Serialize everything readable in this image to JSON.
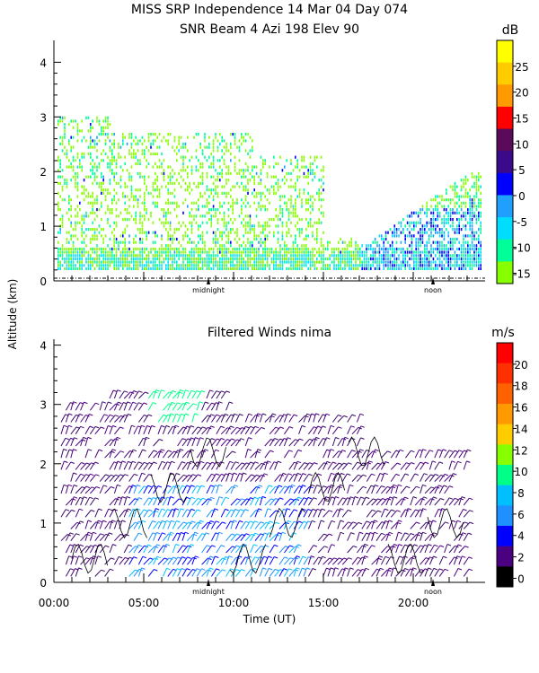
{
  "chart_data": [
    {
      "type": "heatmap",
      "title": "MISS SRP Independence  14 Mar 04 Day 074",
      "subtitle": "SNR Beam 4 Azi 198 Elev 90",
      "ylabel": "Altitude (km)",
      "ylim": [
        0,
        4.4
      ],
      "yticks": [
        "0",
        "1",
        "2",
        "3",
        "4"
      ],
      "xlim": [
        0,
        24
      ],
      "marker_labels": [
        "midnight",
        "noon"
      ],
      "colorbar": {
        "unit": "dB",
        "labels": [
          "25",
          "20",
          "15",
          "10",
          "5",
          "0",
          "-5",
          "-10",
          "-15"
        ],
        "colors": [
          "#ffff00",
          "#ffcc00",
          "#ff9900",
          "#ff0000",
          "#5a0a5a",
          "#3a0a8a",
          "#0000ff",
          "#1fa0ff",
          "#00ddff",
          "#00ff99",
          "#88ff00"
        ]
      },
      "regions": [
        {
          "name": "night-echo",
          "x": [
            0.2,
            17
          ],
          "y": [
            0.2,
            3.0
          ],
          "level": -12
        },
        {
          "name": "day-echo",
          "x": [
            17,
            24
          ],
          "y": [
            0.2,
            2.0
          ],
          "level": 0
        }
      ]
    },
    {
      "type": "scatter",
      "title": "Filtered Winds nima",
      "xlabel": "Time (UT)",
      "ylabel": "Altitude (km)",
      "ylim": [
        0,
        4.1
      ],
      "yticks": [
        "0",
        "1",
        "2",
        "3",
        "4"
      ],
      "xticks": [
        "00:00",
        "05:00",
        "10:00",
        "15:00",
        "20:00"
      ],
      "xlim": [
        0,
        24
      ],
      "marker_labels": [
        "midnight",
        "noon"
      ],
      "colorbar": {
        "unit": "m/s",
        "labels": [
          "20",
          "18",
          "16",
          "14",
          "12",
          "10",
          "8",
          "6",
          "4",
          "2",
          "0"
        ],
        "colors": [
          "#ff0000",
          "#ff3000",
          "#ff6000",
          "#ff9900",
          "#ffcc00",
          "#88ff00",
          "#00ff88",
          "#00bfff",
          "#1e90ff",
          "#0000ff",
          "#4b0082",
          "#000000"
        ]
      }
    }
  ]
}
